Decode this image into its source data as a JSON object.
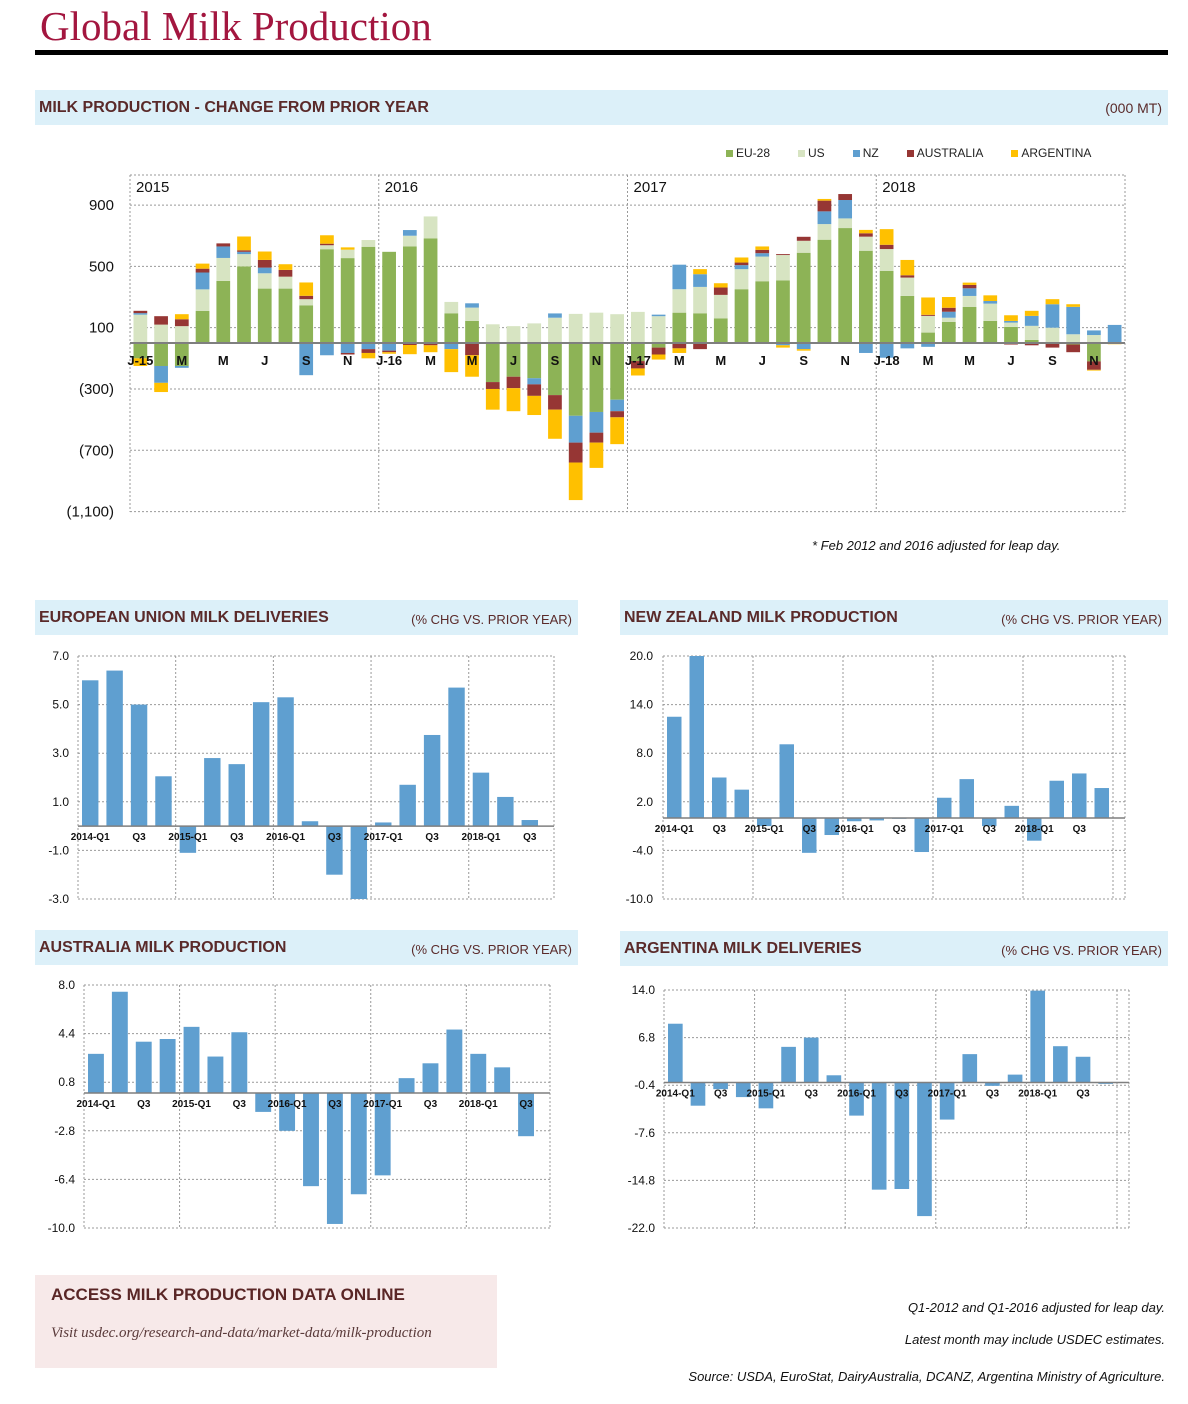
{
  "page_title": "Global Milk Production",
  "main_section": {
    "title": "MILK PRODUCTION - CHANGE FROM PRIOR YEAR",
    "unit": "(000 MT)",
    "footnote": "* Feb 2012 and 2016 adjusted for leap day."
  },
  "panels": [
    {
      "title": "EUROPEAN UNION MILK DELIVERIES",
      "unit": "(% CHG VS. PRIOR YEAR)"
    },
    {
      "title": "NEW ZEALAND MILK PRODUCTION",
      "unit": "(% CHG VS. PRIOR YEAR)"
    },
    {
      "title": "AUSTRALIA MILK PRODUCTION",
      "unit": "(% CHG VS. PRIOR YEAR)"
    },
    {
      "title": "ARGENTINA MILK DELIVERIES",
      "unit": "(% CHG VS. PRIOR YEAR)"
    }
  ],
  "footer": {
    "box_title": "ACCESS MILK PRODUCTION DATA ONLINE",
    "box_link": "Visit usdec.org/research-and-data/market-data/milk-production",
    "note1": "Q1-2012 and Q1-2016 adjusted for leap day.",
    "note2": "Latest month may include USDEC estimates.",
    "source": "Source: USDA, EuroStat, DairyAustralia, DCANZ, Argentina Ministry of Agriculture."
  },
  "chart_data": [
    {
      "type": "bar",
      "stacked": true,
      "legend_position": "top-right",
      "grid": true,
      "ylim": [
        -1100,
        900
      ],
      "y_ticks": [
        900,
        500,
        100,
        -300,
        -700,
        -1100
      ],
      "y_tick_labels": [
        "900",
        "500",
        "100",
        "(300)",
        "(700)",
        "(1,100)"
      ],
      "year_labels": [
        "2015",
        "2016",
        "2017",
        "2018"
      ],
      "x_labels": [
        "J-15",
        "",
        "M",
        "",
        "M",
        "",
        "J",
        "",
        "S",
        "",
        "N",
        "",
        "J-16",
        "",
        "M",
        "",
        "M",
        "",
        "J",
        "",
        "S",
        "",
        "N",
        "",
        "J-17",
        "",
        "M",
        "",
        "M",
        "",
        "J",
        "",
        "S",
        "",
        "N",
        "",
        "J-18",
        "",
        "M",
        "",
        "M",
        "",
        "J",
        "",
        "S",
        "",
        "N",
        ""
      ],
      "series": [
        {
          "name": "EU-28",
          "color": "#8db356",
          "values": [
            -100,
            -150,
            -150,
            210,
            405,
            500,
            355,
            355,
            246,
            612,
            554,
            628,
            595,
            630,
            682,
            194,
            144,
            -255,
            -220,
            -230,
            -340,
            -475,
            -450,
            -370,
            -118,
            -30,
            198,
            194,
            161,
            351,
            403,
            408,
            589,
            674,
            750,
            602,
            471,
            307,
            68,
            137,
            235,
            144,
            105,
            20,
            -5,
            -10,
            -120,
            0
          ]
        },
        {
          "name": "US",
          "color": "#d7e4c2",
          "values": [
            185,
            120,
            110,
            140,
            150,
            80,
            100,
            78,
            40,
            26,
            55,
            44,
            0,
            70,
            144,
            74,
            87,
            122,
            110,
            128,
            165,
            190,
            198,
            188,
            203,
            175,
            153,
            172,
            153,
            131,
            161,
            166,
            78,
            102,
            63,
            92,
            142,
            120,
            109,
            28,
            72,
            113,
            28,
            92,
            100,
            57,
            52,
            0
          ]
        },
        {
          "name": "NZ",
          "color": "#5f9fd0",
          "values": [
            10,
            -110,
            -12,
            110,
            75,
            15,
            37,
            0,
            -210,
            -80,
            -65,
            -40,
            -50,
            37,
            0,
            -40,
            28,
            0,
            0,
            -40,
            28,
            -175,
            -135,
            -75,
            0,
            10,
            160,
            83,
            0,
            26,
            22,
            -15,
            -40,
            83,
            120,
            -65,
            -96,
            -35,
            -25,
            39,
            50,
            17,
            11,
            65,
            153,
            179,
            30,
            118
          ]
        },
        {
          "name": "AUSTRALIA",
          "color": "#963634",
          "values": [
            15,
            55,
            45,
            25,
            20,
            10,
            50,
            44,
            22,
            10,
            -10,
            -25,
            -10,
            -13,
            -15,
            0,
            -80,
            -45,
            -75,
            -75,
            -95,
            -130,
            -65,
            -40,
            -48,
            -45,
            -35,
            -40,
            48,
            17,
            22,
            6,
            26,
            70,
            39,
            22,
            28,
            15,
            7,
            26,
            22,
            0,
            -10,
            -15,
            -25,
            -50,
            -55,
            0
          ]
        },
        {
          "name": "ARGENTINA",
          "color": "#ffc000",
          "values": [
            -50,
            -60,
            33,
            33,
            0,
            90,
            55,
            37,
            87,
            55,
            15,
            -35,
            -10,
            -60,
            -45,
            -150,
            -140,
            -135,
            -150,
            -125,
            -190,
            -245,
            -165,
            -175,
            -46,
            -33,
            -30,
            33,
            28,
            33,
            22,
            -15,
            -10,
            11,
            0,
            22,
            102,
            100,
            113,
            70,
            15,
            37,
            37,
            33,
            33,
            17,
            -5,
            -8
          ]
        }
      ]
    },
    {
      "type": "bar",
      "grid": true,
      "color": "#5f9fd0",
      "ylim": [
        -3,
        7
      ],
      "y_tick_labels": [
        "7.0",
        "5.0",
        "3.0",
        "1.0",
        "-1.0",
        "-3.0"
      ],
      "y_ticks": [
        7,
        5,
        3,
        1,
        -1,
        -3
      ],
      "x_labels": [
        "2014-Q1",
        "",
        "Q3",
        "",
        "2015-Q1",
        "",
        "Q3",
        "",
        "2016-Q1",
        "",
        "Q3",
        "",
        "2017-Q1",
        "",
        "Q3",
        "",
        "2018-Q1",
        "",
        "Q3"
      ],
      "values": [
        6.0,
        6.4,
        5.0,
        2.05,
        -1.1,
        2.8,
        2.55,
        5.1,
        5.3,
        0.2,
        -2.0,
        -3.0,
        0.15,
        1.7,
        3.75,
        5.7,
        2.2,
        1.2,
        0.25
      ]
    },
    {
      "type": "bar",
      "grid": true,
      "color": "#5f9fd0",
      "ylim": [
        -10,
        20
      ],
      "y_tick_labels": [
        "20.0",
        "14.0",
        "8.0",
        "2.0",
        "-4.0",
        "-10.0"
      ],
      "y_ticks": [
        20,
        14,
        8,
        2,
        -4,
        -10
      ],
      "x_labels": [
        "2014-Q1",
        "",
        "Q3",
        "",
        "2015-Q1",
        "",
        "Q3",
        "",
        "2016-Q1",
        "",
        "Q3",
        "",
        "2017-Q1",
        "",
        "Q3",
        "",
        "2018-Q1",
        "",
        "Q3",
        ""
      ],
      "values": [
        12.5,
        20.0,
        5.0,
        3.5,
        -1.0,
        9.1,
        -4.3,
        -2.1,
        -0.4,
        -0.3,
        -0.1,
        -4.2,
        2.5,
        4.8,
        -1.0,
        1.5,
        -2.8,
        4.6,
        5.5,
        3.7
      ]
    },
    {
      "type": "bar",
      "grid": true,
      "color": "#5f9fd0",
      "ylim": [
        -10,
        8
      ],
      "y_tick_labels": [
        "8.0",
        "4.4",
        "0.8",
        "-2.8",
        "-6.4",
        "-10.0"
      ],
      "y_ticks": [
        8,
        4.4,
        0.8,
        -2.8,
        -6.4,
        -10
      ],
      "x_labels": [
        "2014-Q1",
        "",
        "Q3",
        "",
        "2015-Q1",
        "",
        "Q3",
        "",
        "2016-Q1",
        "",
        "Q3",
        "",
        "2017-Q1",
        "",
        "Q3",
        "",
        "2018-Q1",
        "",
        "Q3"
      ],
      "values": [
        2.9,
        7.5,
        3.8,
        4.0,
        4.9,
        2.7,
        4.5,
        -1.4,
        -2.8,
        -6.9,
        -9.7,
        -7.5,
        -6.1,
        1.1,
        2.2,
        4.7,
        2.9,
        1.9,
        -3.2
      ]
    },
    {
      "type": "bar",
      "grid": true,
      "color": "#5f9fd0",
      "ylim": [
        -22,
        14
      ],
      "y_tick_labels": [
        "14.0",
        "6.8",
        "-0.4",
        "-7.6",
        "-14.8",
        "-22.0"
      ],
      "y_ticks": [
        14,
        6.8,
        -0.4,
        -7.6,
        -14.8,
        -22
      ],
      "x_labels": [
        "2014-Q1",
        "",
        "Q3",
        "",
        "2015-Q1",
        "",
        "Q3",
        "",
        "2016-Q1",
        "",
        "Q3",
        "",
        "2017-Q1",
        "",
        "Q3",
        "",
        "2018-Q1",
        "",
        "Q3",
        ""
      ],
      "values": [
        8.9,
        -3.5,
        -1.0,
        -2.2,
        -3.9,
        5.4,
        6.8,
        1.1,
        -5.0,
        -16.2,
        -16.1,
        -20.2,
        -5.6,
        4.3,
        -0.5,
        1.2,
        13.9,
        5.5,
        3.9,
        -0.2
      ]
    }
  ]
}
